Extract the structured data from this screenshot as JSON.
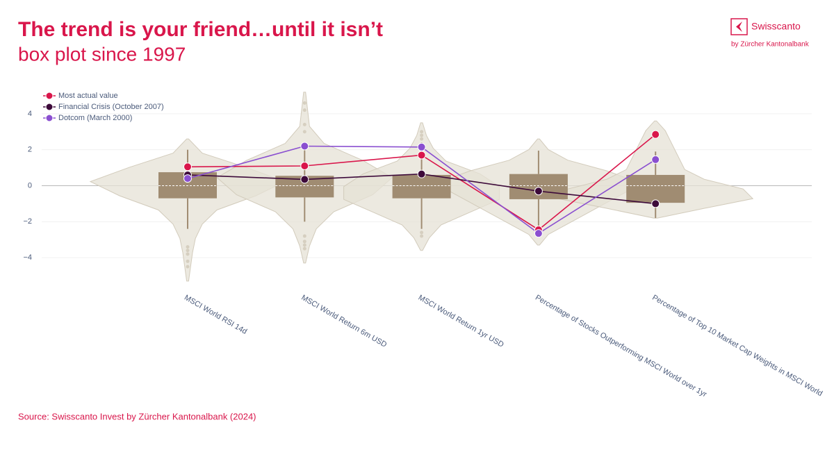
{
  "brand": {
    "name": "Swisscanto",
    "tagline": "by Zürcher Kantonalbank"
  },
  "chart_data": {
    "type": "box",
    "title": "The trend is your friend…until it isn’t",
    "subtitle": "box plot since 1997",
    "source": "Source: Swisscanto Invest by Zürcher Kantonalbank (2024)",
    "categories": [
      "MSCI World RSI 14d",
      "MSCI World Return 6m USD",
      "MSCI World Return 1yr USD",
      "Percentage of Stocks Outperforming MSCI World over 1yr",
      "Percentage of Top 10 Market Cap Weights in MSCI World"
    ],
    "ylim": [
      -5.5,
      5.5
    ],
    "yticks": [
      {
        "value": -4,
        "label": "−4"
      },
      {
        "value": -2,
        "label": "−2"
      },
      0,
      2,
      4
    ],
    "grid": true,
    "legend": "top-left",
    "box_color": "#a08c72",
    "violin_color": "#e6e1d5",
    "boxes": [
      {
        "whisker_low": -2.4,
        "q1": -0.7,
        "median": 0,
        "q3": 0.75,
        "whisker_high": 2.0,
        "outliers": [
          -3.4,
          -3.6,
          -3.8,
          -4.2,
          -4.5
        ],
        "violin_range": [
          -5.3,
          2.6
        ],
        "density": [
          0.01,
          0.03,
          0.05,
          0.08,
          0.15,
          0.3,
          0.7,
          1.0,
          0.6,
          0.15,
          0.01
        ]
      },
      {
        "whisker_low": -2.0,
        "q1": -0.65,
        "median": 0,
        "q3": 0.55,
        "whisker_high": 2.0,
        "outliers": [
          3.0,
          3.4,
          4.2,
          4.6,
          -2.8,
          -3.1,
          -3.3,
          -3.5
        ],
        "violin_range": [
          -4.3,
          5.2
        ],
        "density": [
          0.01,
          0.05,
          0.12,
          0.3,
          0.7,
          0.9,
          0.6,
          0.2,
          0.05,
          0.03,
          0.01
        ]
      },
      {
        "whisker_low": -2.4,
        "q1": -0.7,
        "median": 0,
        "q3": 0.6,
        "whisker_high": 2.4,
        "outliers": [
          2.6,
          2.8,
          3.0,
          -2.6,
          -2.8
        ],
        "violin_range": [
          -3.6,
          3.5
        ],
        "density": [
          0.01,
          0.08,
          0.2,
          0.5,
          0.8,
          0.8,
          0.6,
          0.25,
          0.12,
          0.05,
          0.01
        ]
      },
      {
        "whisker_low": -2.4,
        "q1": -0.75,
        "median": 0,
        "q3": 0.65,
        "whisker_high": 1.95,
        "outliers": [],
        "violin_range": [
          -3.3,
          2.6
        ],
        "density": [
          0.01,
          0.1,
          0.3,
          0.5,
          0.7,
          0.9,
          1.0,
          0.7,
          0.3,
          0.1,
          0.01
        ]
      },
      {
        "whisker_low": -1.8,
        "q1": -0.95,
        "median": 0,
        "q3": 0.6,
        "whisker_high": 1.9,
        "outliers": [],
        "violin_range": [
          -1.8,
          3.6
        ],
        "density": [
          0.02,
          0.5,
          1.0,
          0.9,
          0.5,
          0.3,
          0.25,
          0.2,
          0.15,
          0.1,
          0.01
        ]
      }
    ],
    "series": [
      {
        "name": "Most actual value",
        "color": "#d9164b",
        "values": [
          1.05,
          1.1,
          1.7,
          -2.45,
          2.85
        ]
      },
      {
        "name": "Financial Crisis (October 2007)",
        "color": "#3d0a3a",
        "values": [
          0.6,
          0.35,
          0.65,
          -0.3,
          -1.0
        ]
      },
      {
        "name": "Dotcom (March 2000)",
        "color": "#8a4fd0",
        "values": [
          0.4,
          2.2,
          2.15,
          -2.65,
          1.45
        ]
      }
    ]
  }
}
